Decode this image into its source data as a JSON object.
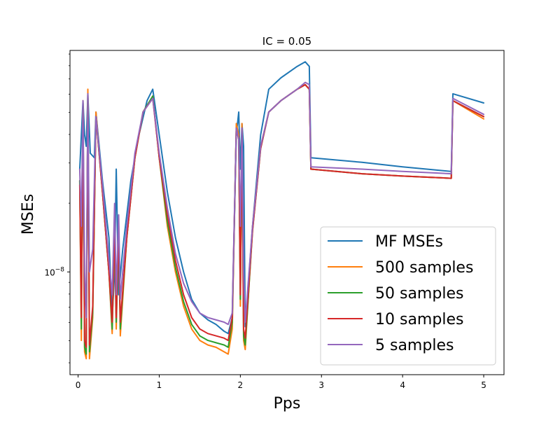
{
  "chart_data": {
    "type": "line",
    "title": "IC = 0.05",
    "xlabel": "Pps",
    "ylabel": "MSEs",
    "xlim": [
      -0.1,
      5.25
    ],
    "ylim_log10": [
      -8.45,
      -7.03
    ],
    "yscale": "log",
    "xticks": [
      {
        "value": 0,
        "label": "0"
      },
      {
        "value": 1,
        "label": "1"
      },
      {
        "value": 2,
        "label": "2"
      },
      {
        "value": 3,
        "label": "3"
      },
      {
        "value": 4,
        "label": "4"
      },
      {
        "value": 5,
        "label": "5"
      }
    ],
    "yticks": [
      {
        "log10": -8,
        "base": "10",
        "exp": "−8"
      }
    ],
    "grid": false,
    "legend_position": "lower-right",
    "series": [
      {
        "name": "MF MSEs",
        "color": "#1f77b4",
        "points": [
          [
            0.02,
            -7.55
          ],
          [
            0.04,
            -7.4
          ],
          [
            0.06,
            -7.25
          ],
          [
            0.08,
            -7.4
          ],
          [
            0.1,
            -7.45
          ],
          [
            0.12,
            -7.22
          ],
          [
            0.15,
            -7.48
          ],
          [
            0.2,
            -7.5
          ],
          [
            0.22,
            -7.3
          ],
          [
            0.3,
            -7.6
          ],
          [
            0.38,
            -7.85
          ],
          [
            0.42,
            -8.2
          ],
          [
            0.45,
            -8.0
          ],
          [
            0.47,
            -7.55
          ],
          [
            0.5,
            -8.1
          ],
          [
            0.55,
            -7.9
          ],
          [
            0.65,
            -7.6
          ],
          [
            0.75,
            -7.4
          ],
          [
            0.85,
            -7.25
          ],
          [
            0.92,
            -7.2
          ],
          [
            1.0,
            -7.4
          ],
          [
            1.1,
            -7.65
          ],
          [
            1.2,
            -7.85
          ],
          [
            1.3,
            -8.0
          ],
          [
            1.4,
            -8.12
          ],
          [
            1.5,
            -8.18
          ],
          [
            1.6,
            -8.21
          ],
          [
            1.7,
            -8.23
          ],
          [
            1.8,
            -8.26
          ],
          [
            1.85,
            -8.27
          ],
          [
            1.9,
            -8.2
          ],
          [
            1.95,
            -7.4
          ],
          [
            1.98,
            -7.3
          ],
          [
            2.0,
            -7.55
          ],
          [
            2.02,
            -7.35
          ],
          [
            2.04,
            -7.45
          ],
          [
            2.06,
            -8.24
          ],
          [
            2.15,
            -7.8
          ],
          [
            2.25,
            -7.4
          ],
          [
            2.35,
            -7.2
          ],
          [
            2.5,
            -7.15
          ],
          [
            2.7,
            -7.1
          ],
          [
            2.8,
            -7.08
          ],
          [
            2.85,
            -7.1
          ],
          [
            2.87,
            -7.5
          ],
          [
            3.5,
            -7.52
          ],
          [
            4.0,
            -7.54
          ],
          [
            4.6,
            -7.56
          ],
          [
            4.62,
            -7.22
          ],
          [
            5.0,
            -7.26
          ]
        ]
      },
      {
        "name": "500 samples",
        "color": "#ff7f0e",
        "points": [
          [
            0.02,
            -7.6
          ],
          [
            0.04,
            -8.3
          ],
          [
            0.06,
            -7.25
          ],
          [
            0.08,
            -8.35
          ],
          [
            0.1,
            -8.38
          ],
          [
            0.12,
            -7.2
          ],
          [
            0.14,
            -8.38
          ],
          [
            0.18,
            -8.2
          ],
          [
            0.22,
            -7.3
          ],
          [
            0.3,
            -7.65
          ],
          [
            0.38,
            -8.0
          ],
          [
            0.42,
            -8.27
          ],
          [
            0.45,
            -7.8
          ],
          [
            0.47,
            -8.25
          ],
          [
            0.5,
            -7.8
          ],
          [
            0.52,
            -8.28
          ],
          [
            0.6,
            -7.85
          ],
          [
            0.7,
            -7.5
          ],
          [
            0.8,
            -7.3
          ],
          [
            0.92,
            -7.23
          ],
          [
            1.0,
            -7.5
          ],
          [
            1.1,
            -7.8
          ],
          [
            1.2,
            -8.0
          ],
          [
            1.3,
            -8.15
          ],
          [
            1.4,
            -8.25
          ],
          [
            1.5,
            -8.3
          ],
          [
            1.6,
            -8.32
          ],
          [
            1.7,
            -8.33
          ],
          [
            1.8,
            -8.35
          ],
          [
            1.85,
            -8.36
          ],
          [
            1.9,
            -8.25
          ],
          [
            1.95,
            -7.35
          ],
          [
            1.98,
            -7.4
          ],
          [
            2.0,
            -8.15
          ],
          [
            2.02,
            -7.35
          ],
          [
            2.04,
            -8.3
          ],
          [
            2.06,
            -8.34
          ],
          [
            2.15,
            -7.8
          ],
          [
            2.25,
            -7.45
          ],
          [
            2.35,
            -7.3
          ],
          [
            2.5,
            -7.25
          ],
          [
            2.7,
            -7.2
          ],
          [
            2.8,
            -7.18
          ],
          [
            2.85,
            -7.2
          ],
          [
            2.87,
            -7.55
          ],
          [
            3.5,
            -7.57
          ],
          [
            4.0,
            -7.58
          ],
          [
            4.6,
            -7.59
          ],
          [
            4.62,
            -7.25
          ],
          [
            5.0,
            -7.33
          ]
        ]
      },
      {
        "name": "50 samples",
        "color": "#2ca02c",
        "points": [
          [
            0.02,
            -7.6
          ],
          [
            0.04,
            -8.25
          ],
          [
            0.06,
            -7.26
          ],
          [
            0.08,
            -8.33
          ],
          [
            0.1,
            -8.36
          ],
          [
            0.12,
            -7.22
          ],
          [
            0.14,
            -8.35
          ],
          [
            0.18,
            -8.18
          ],
          [
            0.22,
            -7.32
          ],
          [
            0.3,
            -7.65
          ],
          [
            0.38,
            -8.0
          ],
          [
            0.42,
            -8.25
          ],
          [
            0.45,
            -7.82
          ],
          [
            0.47,
            -8.22
          ],
          [
            0.5,
            -7.82
          ],
          [
            0.52,
            -8.25
          ],
          [
            0.6,
            -7.85
          ],
          [
            0.7,
            -7.5
          ],
          [
            0.8,
            -7.3
          ],
          [
            0.92,
            -7.23
          ],
          [
            1.0,
            -7.5
          ],
          [
            1.1,
            -7.78
          ],
          [
            1.2,
            -7.98
          ],
          [
            1.3,
            -8.13
          ],
          [
            1.4,
            -8.23
          ],
          [
            1.5,
            -8.28
          ],
          [
            1.6,
            -8.3
          ],
          [
            1.7,
            -8.31
          ],
          [
            1.8,
            -8.32
          ],
          [
            1.85,
            -8.33
          ],
          [
            1.9,
            -8.22
          ],
          [
            1.95,
            -7.37
          ],
          [
            1.98,
            -7.42
          ],
          [
            2.0,
            -8.12
          ],
          [
            2.02,
            -7.37
          ],
          [
            2.04,
            -8.28
          ],
          [
            2.06,
            -8.32
          ],
          [
            2.15,
            -7.82
          ],
          [
            2.25,
            -7.46
          ],
          [
            2.35,
            -7.3
          ],
          [
            2.5,
            -7.25
          ],
          [
            2.7,
            -7.2
          ],
          [
            2.8,
            -7.18
          ],
          [
            2.85,
            -7.2
          ],
          [
            2.87,
            -7.55
          ],
          [
            3.5,
            -7.57
          ],
          [
            4.0,
            -7.58
          ],
          [
            4.6,
            -7.59
          ],
          [
            4.62,
            -7.25
          ],
          [
            5.0,
            -7.32
          ]
        ]
      },
      {
        "name": "10 samples",
        "color": "#d62728",
        "points": [
          [
            0.02,
            -7.62
          ],
          [
            0.04,
            -8.2
          ],
          [
            0.06,
            -7.26
          ],
          [
            0.08,
            -8.3
          ],
          [
            0.1,
            -8.33
          ],
          [
            0.12,
            -7.22
          ],
          [
            0.14,
            -8.32
          ],
          [
            0.18,
            -8.15
          ],
          [
            0.22,
            -7.32
          ],
          [
            0.3,
            -7.65
          ],
          [
            0.38,
            -8.0
          ],
          [
            0.42,
            -8.22
          ],
          [
            0.45,
            -7.82
          ],
          [
            0.47,
            -8.2
          ],
          [
            0.5,
            -7.82
          ],
          [
            0.52,
            -8.22
          ],
          [
            0.6,
            -7.85
          ],
          [
            0.7,
            -7.5
          ],
          [
            0.8,
            -7.3
          ],
          [
            0.92,
            -7.24
          ],
          [
            1.0,
            -7.5
          ],
          [
            1.1,
            -7.75
          ],
          [
            1.2,
            -7.95
          ],
          [
            1.3,
            -8.1
          ],
          [
            1.4,
            -8.2
          ],
          [
            1.5,
            -8.25
          ],
          [
            1.6,
            -8.27
          ],
          [
            1.7,
            -8.28
          ],
          [
            1.8,
            -8.29
          ],
          [
            1.85,
            -8.3
          ],
          [
            1.9,
            -8.2
          ],
          [
            1.95,
            -7.37
          ],
          [
            1.98,
            -7.42
          ],
          [
            2.0,
            -8.1
          ],
          [
            2.02,
            -7.37
          ],
          [
            2.04,
            -8.25
          ],
          [
            2.06,
            -8.29
          ],
          [
            2.15,
            -7.82
          ],
          [
            2.25,
            -7.46
          ],
          [
            2.35,
            -7.3
          ],
          [
            2.5,
            -7.25
          ],
          [
            2.7,
            -7.2
          ],
          [
            2.8,
            -7.18
          ],
          [
            2.85,
            -7.2
          ],
          [
            2.87,
            -7.55
          ],
          [
            3.5,
            -7.57
          ],
          [
            4.0,
            -7.58
          ],
          [
            4.6,
            -7.59
          ],
          [
            4.62,
            -7.25
          ],
          [
            5.0,
            -7.32
          ]
        ]
      },
      {
        "name": "5 samples",
        "color": "#9467bd",
        "points": [
          [
            0.02,
            -7.55
          ],
          [
            0.04,
            -7.8
          ],
          [
            0.06,
            -7.25
          ],
          [
            0.08,
            -8.0
          ],
          [
            0.1,
            -8.2
          ],
          [
            0.12,
            -7.22
          ],
          [
            0.14,
            -8.0
          ],
          [
            0.18,
            -7.9
          ],
          [
            0.22,
            -7.32
          ],
          [
            0.3,
            -7.62
          ],
          [
            0.38,
            -7.95
          ],
          [
            0.42,
            -8.1
          ],
          [
            0.45,
            -7.7
          ],
          [
            0.47,
            -8.1
          ],
          [
            0.5,
            -7.75
          ],
          [
            0.52,
            -8.12
          ],
          [
            0.6,
            -7.8
          ],
          [
            0.7,
            -7.48
          ],
          [
            0.8,
            -7.3
          ],
          [
            0.92,
            -7.24
          ],
          [
            1.0,
            -7.48
          ],
          [
            1.1,
            -7.72
          ],
          [
            1.2,
            -7.92
          ],
          [
            1.3,
            -8.05
          ],
          [
            1.4,
            -8.13
          ],
          [
            1.5,
            -8.18
          ],
          [
            1.6,
            -8.2
          ],
          [
            1.7,
            -8.21
          ],
          [
            1.8,
            -8.22
          ],
          [
            1.85,
            -8.23
          ],
          [
            1.9,
            -8.18
          ],
          [
            1.95,
            -7.37
          ],
          [
            1.98,
            -7.42
          ],
          [
            2.0,
            -7.8
          ],
          [
            2.02,
            -7.37
          ],
          [
            2.04,
            -8.0
          ],
          [
            2.06,
            -8.22
          ],
          [
            2.15,
            -7.8
          ],
          [
            2.25,
            -7.45
          ],
          [
            2.35,
            -7.3
          ],
          [
            2.5,
            -7.25
          ],
          [
            2.7,
            -7.2
          ],
          [
            2.8,
            -7.17
          ],
          [
            2.85,
            -7.18
          ],
          [
            2.87,
            -7.54
          ],
          [
            3.5,
            -7.55
          ],
          [
            4.0,
            -7.56
          ],
          [
            4.6,
            -7.57
          ],
          [
            4.62,
            -7.24
          ],
          [
            5.0,
            -7.31
          ]
        ]
      }
    ]
  }
}
